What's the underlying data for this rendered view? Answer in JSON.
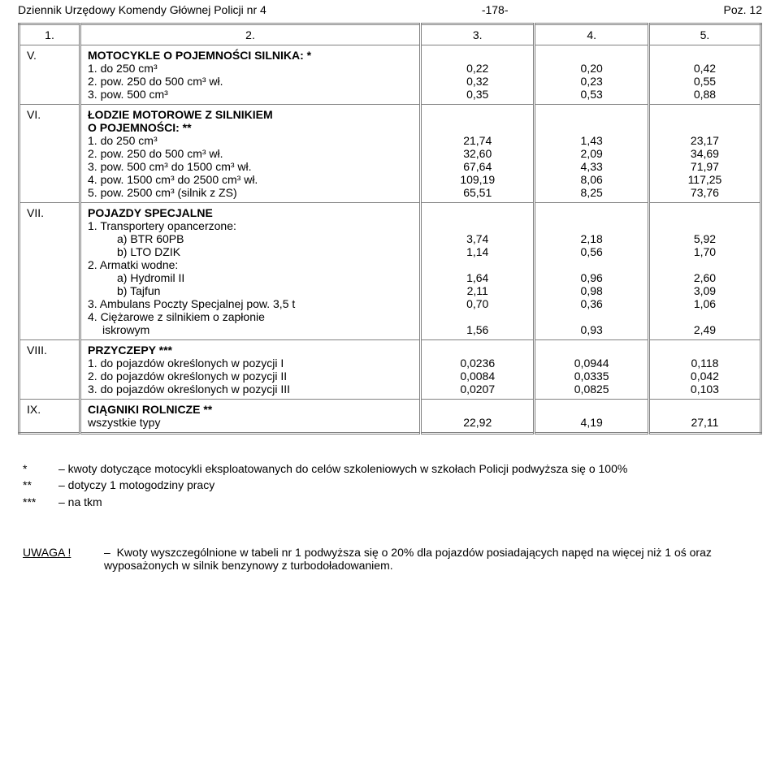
{
  "header": {
    "left": "Dziennik Urzędowy Komendy Głównej Policji nr 4",
    "center": "-178-",
    "right": "Poz. 12"
  },
  "tableHead": {
    "c1": "1.",
    "c2": "2.",
    "c3": "3.",
    "c4": "4.",
    "c5": "5."
  },
  "rows": [
    {
      "roman": "V.",
      "title": "MOTOCYKLE O POJEMNOŚCI SILNIKA: *",
      "items": [
        {
          "label": "1. do 250 cm³",
          "v1": "0,22",
          "v2": "0,20",
          "v3": "0,42"
        },
        {
          "label": "2. pow. 250 do 500 cm³ wł.",
          "v1": "0,32",
          "v2": "0,23",
          "v3": "0,55"
        },
        {
          "label": "3. pow. 500 cm³",
          "v1": "0,35",
          "v2": "0,53",
          "v3": "0,88"
        }
      ]
    },
    {
      "roman": "VI.",
      "title": "ŁODZIE MOTOROWE Z SILNIKIEM",
      "title2": "O POJEMNOŚCI: **",
      "items": [
        {
          "label": "1. do 250 cm³",
          "v1": "21,74",
          "v2": "1,43",
          "v3": "23,17"
        },
        {
          "label": "2. pow. 250 do 500 cm³ wł.",
          "v1": "32,60",
          "v2": "2,09",
          "v3": "34,69"
        },
        {
          "label": "3. pow. 500 cm³ do 1500 cm³ wł.",
          "v1": "67,64",
          "v2": "4,33",
          "v3": "71,97"
        },
        {
          "label": "4. pow. 1500 cm³ do 2500 cm³ wł.",
          "v1": "109,19",
          "v2": "8,06",
          "v3": "117,25"
        },
        {
          "label": "5. pow. 2500 cm³ (silnik z ZS)",
          "v1": "65,51",
          "v2": "8,25",
          "v3": "73,76"
        }
      ]
    },
    {
      "roman": "VII.",
      "title": "POJAZDY SPECJALNE",
      "subgroups": [
        {
          "label": "1. Transportery opancerzone:",
          "items": [
            {
              "label": "a) BTR 60PB",
              "v1": "3,74",
              "v2": "2,18",
              "v3": "5,92"
            },
            {
              "label": "b) LTO DZIK",
              "v1": "1,14",
              "v2": "0,56",
              "v3": "1,70"
            }
          ]
        },
        {
          "label": "2. Armatki wodne:",
          "items": [
            {
              "label": "a) Hydromil II",
              "v1": "1,64",
              "v2": "0,96",
              "v3": "2,60"
            },
            {
              "label": "b) Tajfun",
              "v1": "2,11",
              "v2": "0,98",
              "v3": "3,09"
            }
          ]
        },
        {
          "items": [
            {
              "label": "3. Ambulans Poczty Specjalnej pow. 3,5 t",
              "v1": "0,70",
              "v2": "0,36",
              "v3": "1,06"
            }
          ]
        },
        {
          "label": "4. Ciężarowe z silnikiem o zapłonie",
          "items": [
            {
              "label": "iskrowym",
              "indent": true,
              "v1": "1,56",
              "v2": "0,93",
              "v3": "2,49"
            }
          ]
        }
      ]
    },
    {
      "roman": "VIII.",
      "title": "PRZYCZEPY ***",
      "items": [
        {
          "label": "1. do pojazdów określonych w pozycji I",
          "v1": "0,0236",
          "v2": "0,0944",
          "v3": "0,118"
        },
        {
          "label": "2. do pojazdów określonych w pozycji II",
          "v1": "0,0084",
          "v2": "0,0335",
          "v3": "0,042"
        },
        {
          "label": "3. do pojazdów określonych w pozycji III",
          "v1": "0,0207",
          "v2": "0,0825",
          "v3": "0,103"
        }
      ]
    },
    {
      "roman": "IX.",
      "title": "CIĄGNIKI ROLNICZE **",
      "items": [
        {
          "label": "wszystkie typy",
          "v1": "22,92",
          "v2": "4,19",
          "v3": "27,11"
        }
      ]
    }
  ],
  "notes": [
    {
      "mark": "*",
      "text": "– kwoty dotyczące motocykli eksploatowanych do celów szkoleniowych w szkołach Policji podwyższa się o 100%"
    },
    {
      "mark": "**",
      "text": "– dotyczy 1 motogodziny pracy"
    },
    {
      "mark": "***",
      "text": "– na tkm"
    }
  ],
  "uwaga": {
    "label": "UWAGA !",
    "sep": "–",
    "text": "Kwoty wyszczególnione w tabeli nr 1 podwyższa się o 20% dla pojazdów posiadających napęd na więcej niż 1 oś oraz wyposażonych w silnik benzynowy z turbodoładowaniem."
  }
}
